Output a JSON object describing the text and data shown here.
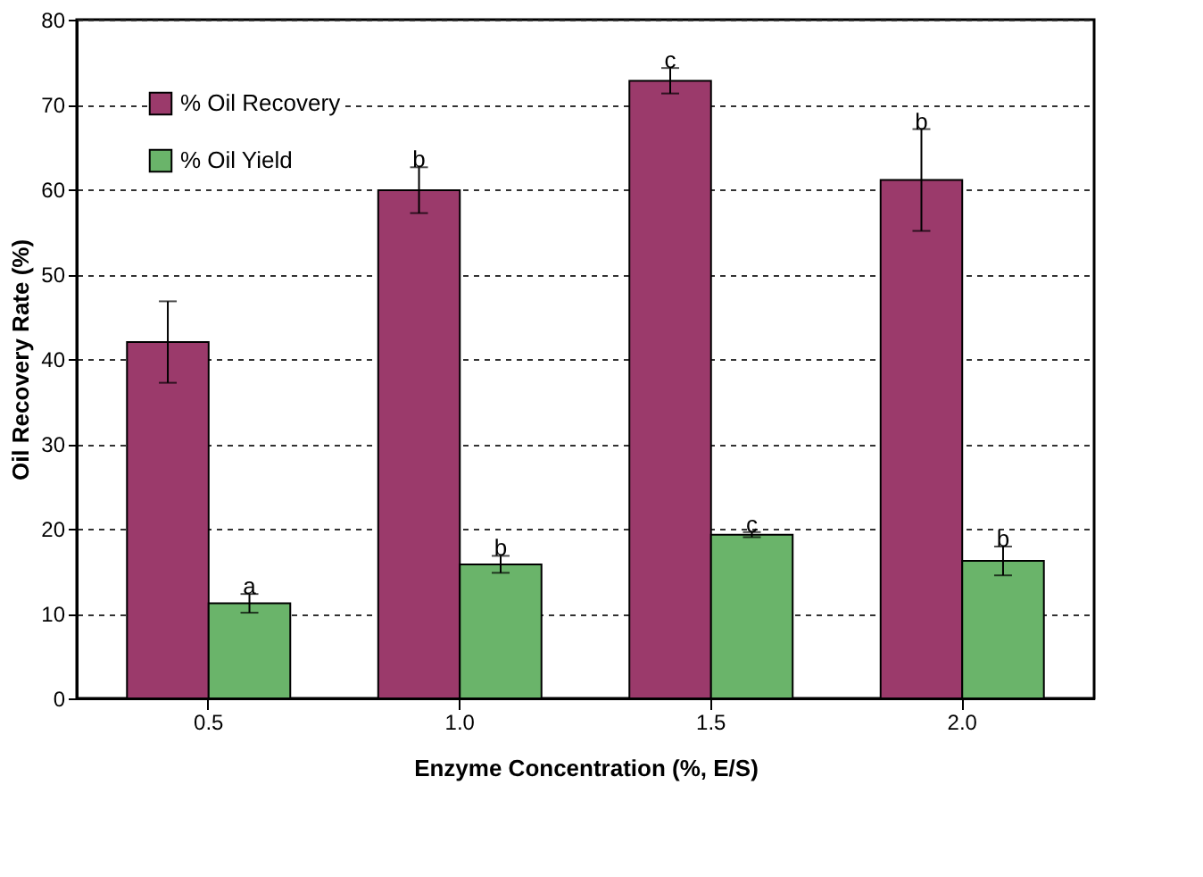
{
  "chart_data": {
    "type": "bar",
    "xlabel": "Enzyme Concentration (%, E/S)",
    "ylabel": "Oil Recovery Rate (%)",
    "categories": [
      "0.5",
      "1.0",
      "1.5",
      "2.0"
    ],
    "series": [
      {
        "name": "% Oil Recovery",
        "color": "#9b3a6b",
        "values": [
          42.0,
          59.9,
          72.8,
          61.1
        ],
        "errors": [
          4.8,
          2.7,
          1.5,
          6.0
        ]
      },
      {
        "name": "% Oil Yield",
        "color": "#6ab46a",
        "values": [
          11.2,
          15.8,
          19.3,
          16.2
        ],
        "errors": [
          1.1,
          1.0,
          0.3,
          1.7
        ]
      }
    ],
    "ylim": [
      0,
      80
    ],
    "yticks": [
      0,
      10,
      20,
      30,
      40,
      50,
      60,
      70,
      80
    ],
    "grid": "y",
    "legend": "top left",
    "annotations": [
      {
        "text": "a",
        "x": "0.5",
        "y": 11.2
      },
      {
        "text": "b",
        "x": "1.0",
        "y": 59.9
      },
      {
        "text": "b",
        "x": "1.0",
        "y": 15.8
      },
      {
        "text": "c",
        "x": "1.5",
        "y": 72.8
      },
      {
        "text": "c",
        "x": "1.5",
        "y": 19.3
      },
      {
        "text": "b",
        "x": "2.0",
        "y": 61.1
      },
      {
        "text": "b",
        "x": "2.0",
        "y": 16.2
      }
    ]
  }
}
